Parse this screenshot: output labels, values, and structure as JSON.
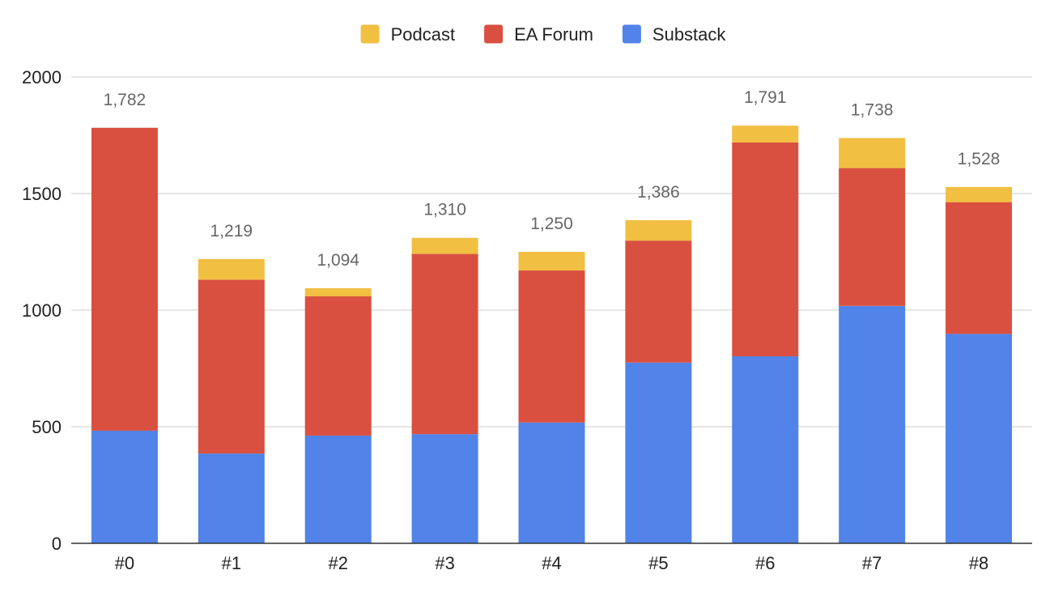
{
  "chart_data": {
    "type": "bar",
    "stacked": true,
    "categories": [
      "#0",
      "#1",
      "#2",
      "#3",
      "#4",
      "#5",
      "#6",
      "#7",
      "#8"
    ],
    "series": [
      {
        "name": "Substack",
        "color": "#5183E8",
        "values": [
          483,
          385,
          462,
          468,
          518,
          775,
          802,
          1018,
          898
        ]
      },
      {
        "name": "EA Forum",
        "color": "#D95040",
        "values": [
          1299,
          745,
          597,
          773,
          652,
          523,
          917,
          591,
          565
        ]
      },
      {
        "name": "Podcast",
        "color": "#F1BF42",
        "values": [
          0,
          89,
          35,
          69,
          80,
          88,
          72,
          129,
          65
        ]
      }
    ],
    "totals": [
      "1,782",
      "1,219",
      "1,094",
      "1,310",
      "1,250",
      "1,386",
      "1,791",
      "1,738",
      "1,528"
    ],
    "legend_order": [
      "Podcast",
      "EA Forum",
      "Substack"
    ],
    "legend_position": "top",
    "y_ticks": [
      "0",
      "500",
      "1000",
      "1500",
      "2000"
    ],
    "ylim": [
      0,
      2000
    ],
    "grid": true,
    "title": "",
    "xlabel": "",
    "ylabel": ""
  }
}
